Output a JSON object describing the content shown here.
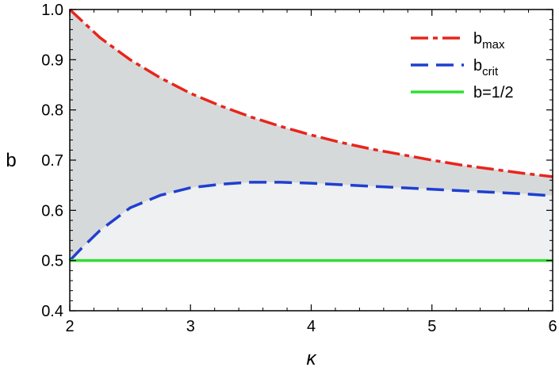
{
  "chart_data": {
    "type": "line",
    "xlabel": "κ",
    "ylabel": "b",
    "xlim": [
      2,
      6
    ],
    "ylim": [
      0.4,
      1.0
    ],
    "x_ticks": [
      "2",
      "3",
      "4",
      "5",
      "6"
    ],
    "y_ticks": [
      "0.4",
      "0.5",
      "0.6",
      "0.7",
      "0.8",
      "0.9",
      "1.0"
    ],
    "grid": false,
    "legend_position": "top-right",
    "series": [
      {
        "name": "b",
        "subscript": "max",
        "color": "#e8251c",
        "style": "dash-dot",
        "x": [
          2.0,
          2.25,
          2.5,
          2.75,
          3.0,
          3.25,
          3.5,
          3.75,
          4.0,
          4.25,
          4.5,
          4.75,
          5.0,
          5.25,
          5.5,
          5.75,
          6.0
        ],
        "y": [
          1.0,
          0.944,
          0.9,
          0.864,
          0.833,
          0.808,
          0.786,
          0.767,
          0.75,
          0.735,
          0.722,
          0.711,
          0.7,
          0.69,
          0.682,
          0.674,
          0.667
        ]
      },
      {
        "name": "b",
        "subscript": "crit",
        "color": "#1f3fd1",
        "style": "dashed",
        "x": [
          2.0,
          2.1,
          2.25,
          2.5,
          2.75,
          3.0,
          3.25,
          3.5,
          3.75,
          4.0,
          4.25,
          4.5,
          4.75,
          5.0,
          5.25,
          5.5,
          5.75,
          6.0
        ],
        "y": [
          0.5,
          0.525,
          0.56,
          0.605,
          0.63,
          0.645,
          0.652,
          0.656,
          0.656,
          0.654,
          0.651,
          0.648,
          0.645,
          0.642,
          0.639,
          0.636,
          0.633,
          0.629
        ]
      },
      {
        "name": "b=1/2",
        "subscript": "",
        "color": "#33dd33",
        "style": "solid",
        "x": [
          2.0,
          6.0
        ],
        "y": [
          0.5,
          0.5
        ]
      }
    ],
    "fill_regions": [
      {
        "between": [
          "b_max",
          "b_crit"
        ],
        "color": "#d6d9da"
      },
      {
        "between": [
          "b_crit",
          "b=1/2"
        ],
        "color": "#eef0f1"
      }
    ]
  }
}
